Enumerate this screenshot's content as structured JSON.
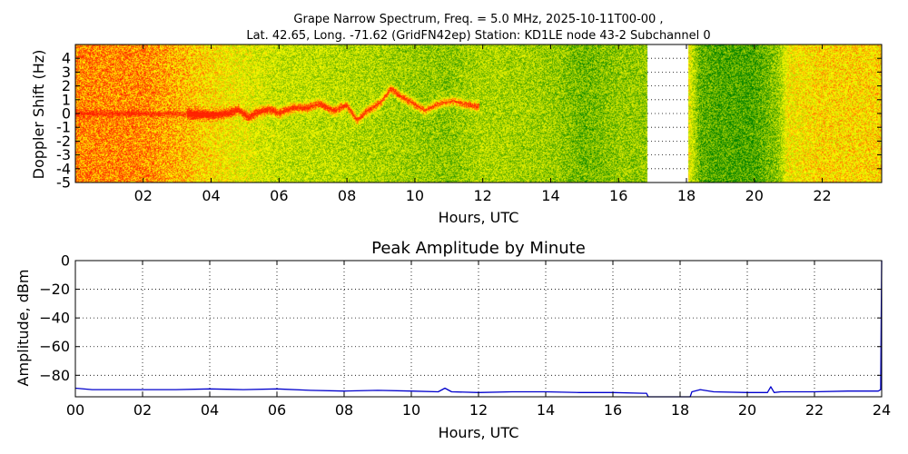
{
  "figure": {
    "title_line1": "Grape Narrow Spectrum, Freq. = 5.0 MHz, 2025-10-11T00-00 ,",
    "title_line2": "Lat.  42.65, Long. -71.62 (GridFN42ep) Station: KD1LE node 43-2 Subchannel 0"
  },
  "chart_data": [
    {
      "type": "heatmap",
      "title": "",
      "xlabel": "Hours, UTC",
      "ylabel": "Doppler Shift (Hz)",
      "xlim": [
        0,
        23.75
      ],
      "ylim": [
        -5,
        5
      ],
      "x_ticks": [
        "02",
        "04",
        "06",
        "08",
        "10",
        "12",
        "14",
        "16",
        "18",
        "20",
        "22"
      ],
      "x_tick_values": [
        2,
        4,
        6,
        8,
        10,
        12,
        14,
        16,
        18,
        20,
        22
      ],
      "y_ticks": [
        "4",
        "3",
        "2",
        "1",
        "0",
        "-1",
        "-2",
        "-3",
        "-4",
        "-5"
      ],
      "y_tick_values": [
        4,
        3,
        2,
        1,
        0,
        -1,
        -2,
        -3,
        -4,
        -5
      ],
      "grid": true,
      "colormap": [
        "#008000",
        "#66b300",
        "#c8e000",
        "#ffff00",
        "#ff8000",
        "#ff2000"
      ],
      "data_gaps": [
        [
          16.85,
          18.05
        ]
      ],
      "background_level_by_hour": [
        [
          0,
          0.8
        ],
        [
          2,
          0.8
        ],
        [
          3,
          0.72
        ],
        [
          4,
          0.6
        ],
        [
          5,
          0.5
        ],
        [
          6,
          0.42
        ],
        [
          8,
          0.38
        ],
        [
          10,
          0.32
        ],
        [
          11,
          0.28
        ],
        [
          12,
          0.36
        ],
        [
          13,
          0.34
        ],
        [
          14,
          0.32
        ],
        [
          15,
          0.22
        ],
        [
          16,
          0.3
        ],
        [
          16.85,
          0.3
        ],
        [
          18.05,
          0.55
        ],
        [
          18.4,
          0.2
        ],
        [
          19,
          0.15
        ],
        [
          20,
          0.14
        ],
        [
          20.7,
          0.3
        ],
        [
          21,
          0.55
        ],
        [
          22,
          0.62
        ],
        [
          23.75,
          0.62
        ]
      ],
      "doppler_trace": [
        [
          0.0,
          0.0
        ],
        [
          3.3,
          -0.05
        ],
        [
          4.0,
          -0.1
        ],
        [
          4.5,
          0.0
        ],
        [
          4.8,
          0.3
        ],
        [
          5.1,
          -0.3
        ],
        [
          5.4,
          0.1
        ],
        [
          5.7,
          0.3
        ],
        [
          6.0,
          0.0
        ],
        [
          6.4,
          0.4
        ],
        [
          6.8,
          0.4
        ],
        [
          7.2,
          0.7
        ],
        [
          7.6,
          0.2
        ],
        [
          8.0,
          0.6
        ],
        [
          8.3,
          -0.5
        ],
        [
          8.6,
          0.2
        ],
        [
          9.0,
          0.8
        ],
        [
          9.3,
          1.8
        ],
        [
          9.6,
          1.2
        ],
        [
          9.9,
          0.8
        ],
        [
          10.3,
          0.2
        ],
        [
          10.7,
          0.7
        ],
        [
          11.1,
          0.9
        ],
        [
          11.6,
          0.6
        ],
        [
          11.9,
          0.5
        ]
      ]
    },
    {
      "type": "line",
      "title": "Peak Amplitude by Minute",
      "xlabel": "Hours, UTC",
      "ylabel": "Amplitude, dBm",
      "xlim": [
        0,
        24
      ],
      "ylim": [
        -95,
        0
      ],
      "x_ticks": [
        "00",
        "02",
        "04",
        "06",
        "08",
        "10",
        "12",
        "14",
        "16",
        "18",
        "20",
        "22",
        "24"
      ],
      "x_tick_values": [
        0,
        2,
        4,
        6,
        8,
        10,
        12,
        14,
        16,
        18,
        20,
        22,
        24
      ],
      "y_ticks": [
        "0",
        "−20",
        "−40",
        "−60",
        "−80"
      ],
      "y_tick_values": [
        0,
        -20,
        -40,
        -60,
        -80
      ],
      "grid": true,
      "series": [
        {
          "color": "#0000cc",
          "x": [
            0,
            0.5,
            1,
            2,
            3,
            4,
            5,
            6,
            7,
            8,
            9,
            10,
            10.8,
            11,
            11.2,
            12,
            13,
            14,
            15,
            16,
            16.9,
            17.0,
            17.05,
            18.3,
            18.35,
            18.6,
            19,
            20,
            20.6,
            20.7,
            20.8,
            21,
            22,
            23,
            23.9,
            23.97,
            24.0
          ],
          "y": [
            -89,
            -90,
            -90,
            -90,
            -90,
            -89.5,
            -90,
            -89.5,
            -90.5,
            -91,
            -90.5,
            -91,
            -91.5,
            -89,
            -91.5,
            -92,
            -91.5,
            -91.5,
            -92,
            -92,
            -92.5,
            -92.5,
            -95,
            -95,
            -91.5,
            -90,
            -91.5,
            -92,
            -92,
            -88,
            -92,
            -91.5,
            -91.5,
            -91,
            -91,
            -90,
            0
          ]
        }
      ]
    }
  ]
}
